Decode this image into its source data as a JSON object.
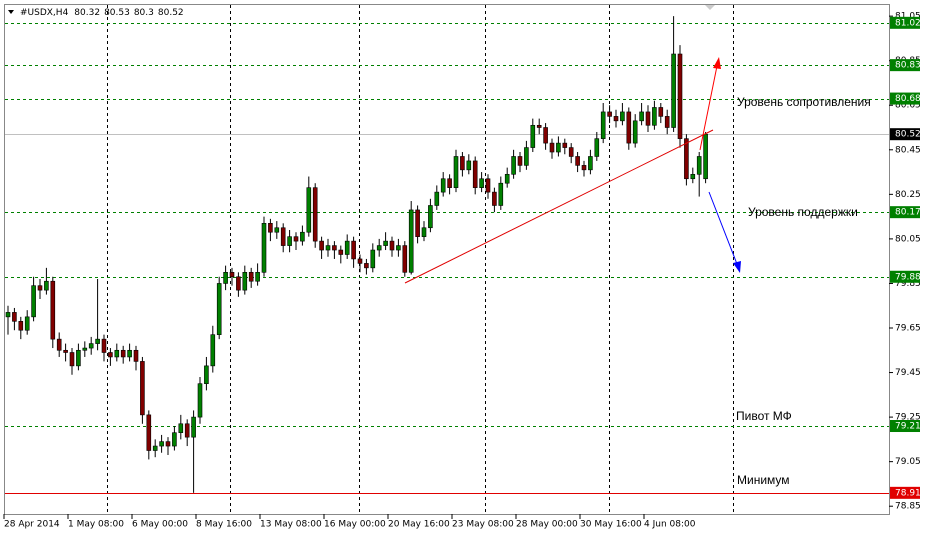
{
  "chart_data": {
    "type": "candlestick",
    "symbol": "#USDX,H4",
    "categories": [
      "28 Apr 2014",
      null,
      null,
      null,
      null,
      null,
      null,
      null,
      null,
      null,
      "1 May 08:00",
      null,
      null,
      null,
      null,
      null,
      null,
      null,
      null,
      null,
      "6 May 00:00",
      null,
      null,
      null,
      null,
      null,
      null,
      null,
      null,
      null,
      "8 May 16:00",
      null,
      null,
      null,
      null,
      null,
      null,
      null,
      null,
      null,
      "13 May 08:00",
      null,
      null,
      null,
      null,
      null,
      null,
      null,
      null,
      null,
      "16 May 00:00",
      null,
      null,
      null,
      null,
      null,
      null,
      null,
      null,
      null,
      "20 May 16:00",
      null,
      null,
      null,
      null,
      null,
      null,
      null,
      null,
      null,
      "23 May 08:00",
      null,
      null,
      null,
      null,
      null,
      null,
      null,
      null,
      null,
      "28 May 00:00",
      null,
      null,
      null,
      null,
      null,
      null,
      null,
      null,
      null,
      "30 May 16:00",
      null,
      null,
      null,
      null,
      null,
      null,
      null,
      null,
      null,
      "4 Jun 08:00",
      null,
      null,
      null,
      null,
      null,
      null,
      null,
      null,
      null
    ],
    "candles": [
      [
        79.7,
        79.75,
        79.62,
        79.72
      ],
      [
        79.72,
        79.74,
        79.64,
        79.68
      ],
      [
        79.68,
        79.7,
        79.6,
        79.64
      ],
      [
        79.64,
        79.73,
        79.62,
        79.7
      ],
      [
        79.7,
        79.88,
        79.68,
        79.84
      ],
      [
        79.84,
        79.87,
        79.78,
        79.82
      ],
      [
        79.82,
        79.92,
        79.8,
        79.86
      ],
      [
        79.86,
        79.88,
        79.56,
        79.6
      ],
      [
        79.6,
        79.63,
        79.52,
        79.55
      ],
      [
        79.55,
        79.58,
        79.5,
        79.54
      ],
      [
        79.54,
        79.56,
        79.44,
        79.48
      ],
      [
        79.48,
        79.58,
        79.46,
        79.55
      ],
      [
        79.55,
        79.59,
        79.52,
        79.56
      ],
      [
        79.56,
        79.61,
        79.53,
        79.58
      ],
      [
        79.58,
        79.87,
        79.55,
        79.6
      ],
      [
        79.6,
        79.62,
        79.5,
        79.54
      ],
      [
        79.54,
        79.56,
        79.48,
        79.52
      ],
      [
        79.52,
        79.58,
        79.5,
        79.55
      ],
      [
        79.55,
        79.57,
        79.49,
        79.52
      ],
      [
        79.52,
        79.58,
        79.5,
        79.55
      ],
      [
        79.55,
        79.57,
        79.46,
        79.5
      ],
      [
        79.5,
        79.52,
        79.22,
        79.26
      ],
      [
        79.26,
        79.28,
        79.06,
        79.1
      ],
      [
        79.1,
        79.15,
        79.07,
        79.12
      ],
      [
        79.12,
        79.17,
        79.09,
        79.14
      ],
      [
        79.14,
        79.16,
        79.08,
        79.12
      ],
      [
        79.12,
        79.21,
        79.1,
        79.18
      ],
      [
        79.18,
        79.26,
        79.15,
        79.22
      ],
      [
        79.22,
        79.24,
        79.12,
        79.16
      ],
      [
        79.16,
        79.28,
        78.91,
        79.25
      ],
      [
        79.25,
        79.43,
        79.22,
        79.4
      ],
      [
        79.4,
        79.52,
        79.37,
        79.48
      ],
      [
        79.48,
        79.66,
        79.45,
        79.62
      ],
      [
        79.62,
        79.88,
        79.6,
        79.85
      ],
      [
        79.85,
        79.93,
        79.82,
        79.9
      ],
      [
        79.9,
        79.92,
        79.84,
        79.88
      ],
      [
        79.88,
        79.9,
        79.79,
        79.82
      ],
      [
        79.82,
        79.93,
        79.8,
        79.9
      ],
      [
        79.9,
        79.92,
        79.83,
        79.86
      ],
      [
        79.86,
        79.94,
        79.84,
        79.9
      ],
      [
        79.9,
        80.15,
        79.88,
        80.12
      ],
      [
        80.12,
        80.14,
        80.04,
        80.08
      ],
      [
        80.08,
        80.13,
        80.05,
        80.1
      ],
      [
        80.1,
        80.12,
        79.99,
        80.02
      ],
      [
        80.02,
        80.09,
        79.99,
        80.06
      ],
      [
        80.06,
        80.08,
        80.0,
        80.04
      ],
      [
        80.04,
        80.11,
        80.02,
        80.08
      ],
      [
        80.08,
        80.33,
        80.06,
        80.28
      ],
      [
        80.28,
        80.3,
        80.01,
        80.04
      ],
      [
        80.04,
        80.06,
        79.96,
        80.0
      ],
      [
        80.0,
        80.05,
        79.97,
        80.02
      ],
      [
        80.02,
        80.04,
        79.96,
        80.0
      ],
      [
        80.0,
        80.02,
        79.94,
        79.98
      ],
      [
        79.98,
        80.07,
        79.96,
        80.04
      ],
      [
        80.04,
        80.06,
        79.92,
        79.96
      ],
      [
        79.96,
        79.98,
        79.9,
        79.94
      ],
      [
        79.94,
        79.96,
        79.89,
        79.92
      ],
      [
        79.92,
        80.03,
        79.9,
        80.0
      ],
      [
        80.0,
        80.05,
        79.97,
        80.02
      ],
      [
        80.02,
        80.08,
        80.0,
        80.04
      ],
      [
        80.04,
        80.06,
        79.97,
        80.0
      ],
      [
        80.0,
        80.05,
        79.97,
        80.02
      ],
      [
        80.02,
        80.04,
        79.88,
        79.9
      ],
      [
        79.9,
        80.22,
        79.89,
        80.18
      ],
      [
        80.18,
        80.2,
        80.03,
        80.06
      ],
      [
        80.06,
        80.13,
        80.04,
        80.1
      ],
      [
        80.1,
        80.23,
        80.08,
        80.2
      ],
      [
        80.2,
        80.29,
        80.18,
        80.26
      ],
      [
        80.26,
        80.35,
        80.24,
        80.32
      ],
      [
        80.32,
        80.34,
        80.25,
        80.28
      ],
      [
        80.28,
        80.45,
        80.26,
        80.42
      ],
      [
        80.42,
        80.44,
        80.33,
        80.36
      ],
      [
        80.36,
        80.43,
        80.34,
        80.4
      ],
      [
        80.4,
        80.42,
        80.25,
        80.28
      ],
      [
        80.28,
        80.35,
        80.26,
        80.32
      ],
      [
        80.32,
        80.34,
        80.23,
        80.26
      ],
      [
        80.26,
        80.28,
        80.17,
        80.2
      ],
      [
        80.2,
        80.33,
        80.18,
        80.3
      ],
      [
        80.3,
        80.37,
        80.28,
        80.34
      ],
      [
        80.34,
        80.45,
        80.32,
        80.42
      ],
      [
        80.42,
        80.44,
        80.35,
        80.38
      ],
      [
        80.38,
        80.49,
        80.36,
        80.46
      ],
      [
        80.46,
        80.59,
        80.44,
        80.56
      ],
      [
        80.56,
        80.59,
        80.52,
        80.55
      ],
      [
        80.55,
        80.57,
        80.45,
        80.48
      ],
      [
        80.48,
        80.5,
        80.41,
        80.44
      ],
      [
        80.44,
        80.51,
        80.42,
        80.48
      ],
      [
        80.48,
        80.5,
        80.43,
        80.46
      ],
      [
        80.46,
        80.48,
        80.39,
        80.42
      ],
      [
        80.42,
        80.44,
        80.35,
        80.38
      ],
      [
        80.38,
        80.4,
        80.33,
        80.36
      ],
      [
        80.36,
        80.45,
        80.34,
        80.42
      ],
      [
        80.42,
        80.53,
        80.4,
        80.5
      ],
      [
        80.5,
        80.66,
        80.48,
        80.62
      ],
      [
        80.62,
        80.65,
        80.57,
        80.6
      ],
      [
        80.6,
        80.63,
        80.55,
        80.58
      ],
      [
        80.58,
        80.66,
        80.56,
        80.62
      ],
      [
        80.62,
        80.64,
        80.45,
        80.48
      ],
      [
        80.48,
        80.61,
        80.46,
        80.58
      ],
      [
        80.58,
        80.66,
        80.56,
        80.62
      ],
      [
        80.62,
        80.65,
        80.53,
        80.56
      ],
      [
        80.56,
        80.67,
        80.54,
        80.64
      ],
      [
        80.64,
        80.66,
        80.57,
        80.6
      ],
      [
        80.6,
        80.63,
        80.52,
        80.55
      ],
      [
        80.55,
        81.05,
        80.53,
        80.88
      ],
      [
        80.88,
        80.92,
        80.46,
        80.5
      ],
      [
        80.5,
        80.52,
        80.29,
        80.32
      ],
      [
        80.32,
        80.37,
        80.3,
        80.34
      ],
      [
        80.34,
        80.44,
        80.24,
        80.42
      ],
      [
        80.32,
        80.53,
        80.3,
        80.52
      ]
    ],
    "bull_color": "#008000",
    "bear_color": "#800000",
    "ylim": [
      78.815,
      81.1
    ],
    "yticks": [
      81.05,
      80.85,
      80.65,
      80.45,
      80.25,
      80.05,
      79.85,
      79.65,
      79.45,
      79.25,
      79.05,
      78.85
    ],
    "levels": [
      {
        "value": 81.02,
        "color": "#008000",
        "style": "dashed"
      },
      {
        "value": 80.83,
        "color": "#008000",
        "style": "dashed"
      },
      {
        "value": 80.68,
        "color": "#008000",
        "style": "dashed"
      },
      {
        "value": 80.17,
        "color": "#008000",
        "style": "dashed"
      },
      {
        "value": 79.88,
        "color": "#008000",
        "style": "dashed"
      },
      {
        "value": 79.21,
        "color": "#008000",
        "style": "dashed"
      },
      {
        "value": 78.91,
        "color": "#e00000",
        "style": "solid"
      }
    ],
    "current": 80.52,
    "annotations": [
      "Уровень сопротивления",
      "Уровень поддержки",
      "Пивот МФ",
      "Минимум"
    ]
  }
}
